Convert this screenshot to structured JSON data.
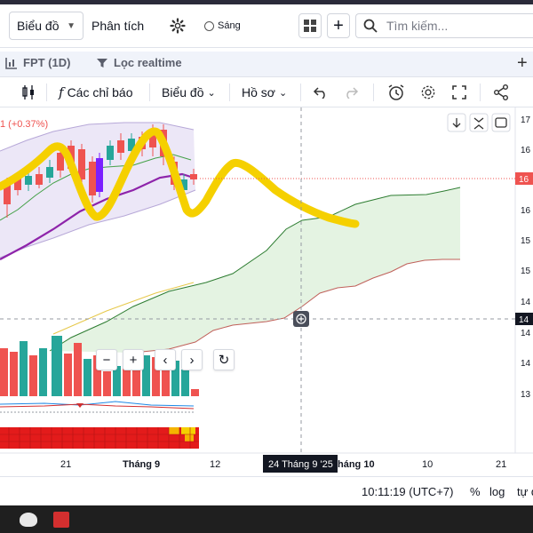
{
  "header": {
    "chart_type_label": "Biểu đồ",
    "analysis_label": "Phân tích",
    "theme_label": "Sáng",
    "search_placeholder": "Tìm kiếm..."
  },
  "tabs": {
    "symbol_label": "FPT (1D)",
    "filter_label": "Lọc realtime"
  },
  "toolbar": {
    "indicators_label": "Các chỉ báo",
    "chart_label": "Biểu đồ",
    "profile_label": "Hồ sơ"
  },
  "chart": {
    "change_text": "1 (+0.37%)",
    "price_labels": [
      "17",
      "16",
      "16",
      "16",
      "15",
      "15",
      "14",
      "14",
      "14",
      "14",
      "13"
    ],
    "current_price_tag": "16",
    "crosshair_price_tag": "14",
    "time_labels": [
      "21",
      "Tháng 9",
      "12",
      "háng 10",
      "10",
      "21"
    ],
    "crosshair_time_label": "24 Tháng 9 '25",
    "colors": {
      "up": "#26a69a",
      "down": "#ef5350",
      "highlight": "#f5d000",
      "cloud_fill": "#e6f4e6",
      "bollinger_fill": "#ece7f7"
    }
  },
  "status": {
    "clock": "10:11:19 (UTC+7)",
    "percent_label": "%",
    "log_label": "log",
    "auto_label": "tự độ"
  }
}
